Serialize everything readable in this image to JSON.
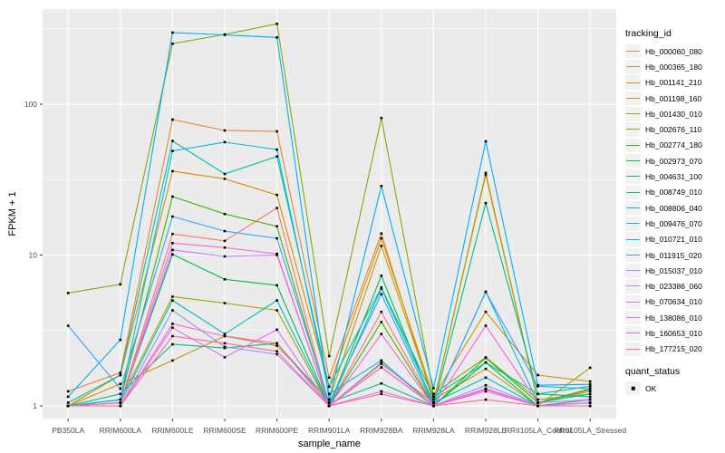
{
  "chart_data": {
    "type": "line",
    "title": "",
    "xlabel": "sample_name",
    "ylabel": "FPKM + 1",
    "y_scale": "log10",
    "y_ticks": [
      "1",
      "10",
      "100"
    ],
    "ylim": [
      1,
      430
    ],
    "grid": "ggplot-grey-panel-white-gridlines",
    "legend_position": "right",
    "point_shape": "filled-black-square",
    "categories": [
      "PB350LA",
      "RRIM600LA",
      "RRIM600LE",
      "RRIM600SE",
      "RRIM600PE",
      "RRIM901LA",
      "RRIM928BA",
      "RRIM928LA",
      "RRIM928LE",
      "RRII105LA_Control",
      "RRII105LA_Stressed"
    ],
    "series": [
      {
        "name": "Hb_000060_080",
        "color": "#F8766D",
        "values": [
          1.0,
          1.05,
          13.8,
          12.4,
          20.5,
          1.0,
          4.2,
          1.0,
          1.3,
          1.0,
          1.05
        ]
      },
      {
        "name": "Hb_000365_180",
        "color": "#EA8331",
        "values": [
          1.25,
          1.66,
          79,
          67,
          66,
          1.54,
          13.9,
          1.05,
          35,
          1.05,
          1.25
        ]
      },
      {
        "name": "Hb_001141_210",
        "color": "#D89000",
        "values": [
          1.0,
          1.6,
          36,
          32,
          25,
          1.34,
          12.9,
          1.15,
          4.2,
          1.6,
          1.45
        ]
      },
      {
        "name": "Hb_001198_160",
        "color": "#C09B00",
        "values": [
          1.0,
          1.4,
          2.0,
          2.9,
          2.5,
          1.1,
          11.5,
          1.1,
          1.76,
          1.0,
          1.79
        ]
      },
      {
        "name": "Hb_001430_010",
        "color": "#A3A500",
        "values": [
          1.0,
          1.1,
          5.3,
          4.8,
          4.3,
          1.0,
          1.9,
          1.05,
          34,
          1.05,
          1.3
        ]
      },
      {
        "name": "Hb_002676_110",
        "color": "#7CAE00",
        "values": [
          5.6,
          6.4,
          252,
          290,
          341,
          2.14,
          81,
          1.2,
          2.1,
          1.1,
          1.2
        ]
      },
      {
        "name": "Hb_002774_180",
        "color": "#39B600",
        "values": [
          1.0,
          1.1,
          24.4,
          18.7,
          15.5,
          1.0,
          3.6,
          1.0,
          2.08,
          1.05,
          1.28
        ]
      },
      {
        "name": "Hb_002973_070",
        "color": "#00BB4E",
        "values": [
          1.0,
          1.05,
          10.1,
          6.9,
          6.3,
          1.0,
          7.3,
          1.0,
          1.94,
          1.0,
          1.1
        ]
      },
      {
        "name": "Hb_004631_100",
        "color": "#00BF7D",
        "values": [
          1.0,
          1.2,
          2.56,
          2.42,
          2.6,
          1.05,
          1.41,
          1.0,
          22.1,
          1.2,
          1.15
        ]
      },
      {
        "name": "Hb_008749_010",
        "color": "#00C1A3",
        "values": [
          1.05,
          1.6,
          57,
          34.5,
          45,
          1.34,
          6.1,
          1.15,
          1.94,
          1.2,
          1.35
        ]
      },
      {
        "name": "Hb_008806_040",
        "color": "#00BFC4",
        "values": [
          1.0,
          1.05,
          5.0,
          3.0,
          5.0,
          1.0,
          6.0,
          1.05,
          1.54,
          1.0,
          1.1
        ]
      },
      {
        "name": "Hb_009476_070",
        "color": "#00BAE0",
        "values": [
          1.0,
          1.1,
          49,
          56,
          50,
          1.2,
          2.0,
          1.0,
          5.7,
          1.05,
          1.2
        ]
      },
      {
        "name": "Hb_010721_010",
        "color": "#00B0F6",
        "values": [
          1.15,
          2.74,
          298,
          288,
          277,
          1.1,
          28.7,
          1.31,
          56.7,
          1.37,
          1.39
        ]
      },
      {
        "name": "Hb_011915_020",
        "color": "#35A2FF",
        "values": [
          3.4,
          1.3,
          18,
          14.4,
          12.9,
          1.05,
          5.5,
          1.0,
          5.7,
          1.35,
          1.3
        ]
      },
      {
        "name": "Hb_015037_010",
        "color": "#9590FF",
        "values": [
          1.0,
          1.0,
          4.3,
          2.46,
          2.2,
          1.0,
          1.8,
          1.0,
          1.37,
          1.0,
          1.05
        ]
      },
      {
        "name": "Hb_023386_060",
        "color": "#C77CFF",
        "values": [
          1.0,
          1.05,
          10.8,
          9.8,
          10.0,
          1.0,
          1.94,
          1.0,
          1.3,
          1.0,
          1.0
        ]
      },
      {
        "name": "Hb_070634_010",
        "color": "#E76BF3",
        "values": [
          1.0,
          1.0,
          3.3,
          2.1,
          3.2,
          1.0,
          1.25,
          1.0,
          1.25,
          1.0,
          1.05
        ]
      },
      {
        "name": "Hb_138086_010",
        "color": "#FA62DB",
        "values": [
          1.0,
          1.05,
          12.0,
          11.2,
          10.2,
          1.0,
          3.0,
          1.0,
          3.4,
          1.05,
          1.1
        ]
      },
      {
        "name": "Hb_160653_010",
        "color": "#FF62BC",
        "values": [
          1.0,
          1.0,
          3.5,
          2.9,
          2.6,
          1.0,
          1.8,
          1.0,
          1.28,
          1.0,
          1.0
        ]
      },
      {
        "name": "Hb_177215_020",
        "color": "#FF6A98",
        "values": [
          1.0,
          1.0,
          2.9,
          2.6,
          2.3,
          1.0,
          1.2,
          1.0,
          1.1,
          1.0,
          1.0
        ]
      }
    ]
  },
  "legend": {
    "tracking_title": "tracking_id",
    "quant_title": "quant_status",
    "quant_value": "OK",
    "quant_point_color": "#000000"
  },
  "panel": {
    "bg": "#EBEBEB",
    "grid_major": "#FFFFFF",
    "grid_minor": "#FFFFFF",
    "tick_text_color": "#4D4D4D"
  }
}
